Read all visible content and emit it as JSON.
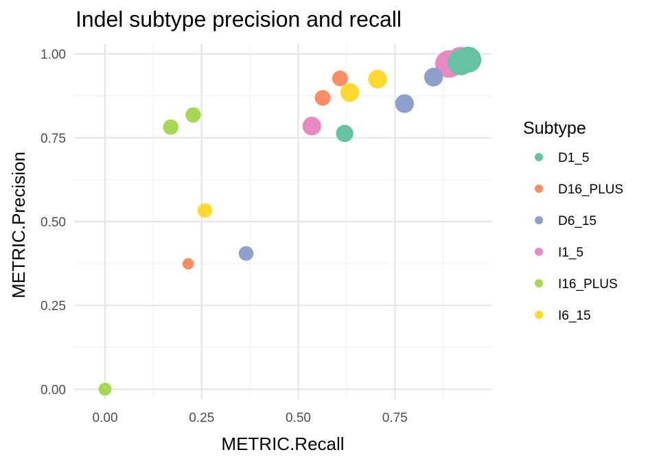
{
  "chart_data": {
    "type": "scatter",
    "title": "Indel subtype precision and recall",
    "xlabel": "METRIC.Recall",
    "ylabel": "METRIC.Precision",
    "xlim": [
      -0.08,
      1.0
    ],
    "ylim": [
      -0.03,
      1.03
    ],
    "x_ticks": [
      0.0,
      0.25,
      0.5,
      0.75
    ],
    "x_tick_labels": [
      "0.00",
      "0.25",
      "0.50",
      "0.75"
    ],
    "y_ticks": [
      0.0,
      0.25,
      0.5,
      0.75,
      1.0
    ],
    "y_tick_labels": [
      "0.00",
      "0.25",
      "0.50",
      "0.75",
      "1.00"
    ],
    "grid": true,
    "legend": {
      "title": "Subtype",
      "placement": "right"
    },
    "series": [
      {
        "name": "D1_5",
        "color": "#66c2a5",
        "points": [
          {
            "x": 0.62,
            "y": 0.763,
            "size": 2
          },
          {
            "x": 0.92,
            "y": 0.975,
            "size": 6
          },
          {
            "x": 0.94,
            "y": 0.983,
            "size": 6
          }
        ]
      },
      {
        "name": "D16_PLUS",
        "color": "#fc8d62",
        "points": [
          {
            "x": 0.215,
            "y": 0.374,
            "size": 0.5
          },
          {
            "x": 0.563,
            "y": 0.869,
            "size": 1.5
          },
          {
            "x": 0.608,
            "y": 0.927,
            "size": 1.5
          }
        ]
      },
      {
        "name": "D6_15",
        "color": "#8da0cb",
        "points": [
          {
            "x": 0.365,
            "y": 0.405,
            "size": 1.2
          },
          {
            "x": 0.775,
            "y": 0.852,
            "size": 2.5
          },
          {
            "x": 0.85,
            "y": 0.931,
            "size": 2.5
          }
        ]
      },
      {
        "name": "I1_5",
        "color": "#e78ac3",
        "points": [
          {
            "x": 0.535,
            "y": 0.785,
            "size": 2.5
          },
          {
            "x": 0.89,
            "y": 0.97,
            "size": 7
          },
          {
            "x": 0.92,
            "y": 0.98,
            "size": 7
          }
        ]
      },
      {
        "name": "I16_PLUS",
        "color": "#a6d854",
        "points": [
          {
            "x": 0.0,
            "y": 0.0,
            "size": 0.8
          },
          {
            "x": 0.17,
            "y": 0.782,
            "size": 1.4
          },
          {
            "x": 0.228,
            "y": 0.818,
            "size": 1.4
          }
        ]
      },
      {
        "name": "I6_15",
        "color": "#ffd92f",
        "points": [
          {
            "x": 0.258,
            "y": 0.533,
            "size": 1.2
          },
          {
            "x": 0.633,
            "y": 0.885,
            "size": 2.5
          },
          {
            "x": 0.705,
            "y": 0.925,
            "size": 2.5
          }
        ]
      }
    ]
  }
}
